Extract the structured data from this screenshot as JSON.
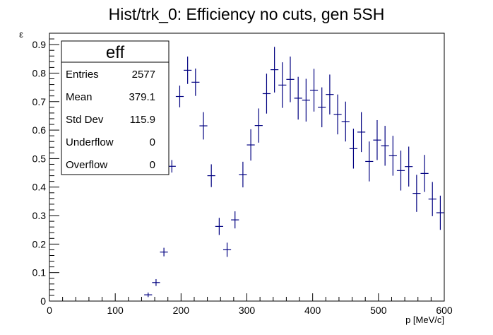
{
  "chart_data": {
    "type": "scatter",
    "title": "Hist/trk_0: Efficiency no cuts, gen 5SH",
    "xlabel": "p [MeV/c]",
    "ylabel": "ε",
    "xlim": [
      0,
      600
    ],
    "ylim": [
      0,
      0.94
    ],
    "x_ticks": [
      "0",
      "100",
      "200",
      "300",
      "400",
      "500",
      "600"
    ],
    "y_ticks": [
      "0",
      "0.1",
      "0.2",
      "0.3",
      "0.4",
      "0.5",
      "0.6",
      "0.7",
      "0.8",
      "0.9"
    ],
    "grid": false,
    "marker_color": "#000080",
    "bin_width": 12,
    "series": [
      {
        "points": [
          {
            "x": 150,
            "y": 0.022,
            "err": 0.008
          },
          {
            "x": 162,
            "y": 0.065,
            "err": 0.012
          },
          {
            "x": 174,
            "y": 0.172,
            "err": 0.015
          },
          {
            "x": 186,
            "y": 0.473,
            "err": 0.022
          },
          {
            "x": 198,
            "y": 0.718,
            "err": 0.038
          },
          {
            "x": 210,
            "y": 0.81,
            "err": 0.048
          },
          {
            "x": 222,
            "y": 0.768,
            "err": 0.048
          },
          {
            "x": 234,
            "y": 0.615,
            "err": 0.048
          },
          {
            "x": 246,
            "y": 0.44,
            "err": 0.04
          },
          {
            "x": 258,
            "y": 0.262,
            "err": 0.03
          },
          {
            "x": 270,
            "y": 0.18,
            "err": 0.025
          },
          {
            "x": 282,
            "y": 0.285,
            "err": 0.03
          },
          {
            "x": 294,
            "y": 0.444,
            "err": 0.045
          },
          {
            "x": 306,
            "y": 0.548,
            "err": 0.055
          },
          {
            "x": 318,
            "y": 0.616,
            "err": 0.06
          },
          {
            "x": 330,
            "y": 0.728,
            "err": 0.07
          },
          {
            "x": 342,
            "y": 0.812,
            "err": 0.08
          },
          {
            "x": 354,
            "y": 0.758,
            "err": 0.08
          },
          {
            "x": 366,
            "y": 0.778,
            "err": 0.08
          },
          {
            "x": 378,
            "y": 0.712,
            "err": 0.075
          },
          {
            "x": 390,
            "y": 0.705,
            "err": 0.075
          },
          {
            "x": 402,
            "y": 0.74,
            "err": 0.075
          },
          {
            "x": 414,
            "y": 0.68,
            "err": 0.07
          },
          {
            "x": 426,
            "y": 0.725,
            "err": 0.07
          },
          {
            "x": 438,
            "y": 0.655,
            "err": 0.07
          },
          {
            "x": 450,
            "y": 0.63,
            "err": 0.07
          },
          {
            "x": 462,
            "y": 0.535,
            "err": 0.07
          },
          {
            "x": 474,
            "y": 0.593,
            "err": 0.07
          },
          {
            "x": 486,
            "y": 0.49,
            "err": 0.07
          },
          {
            "x": 498,
            "y": 0.565,
            "err": 0.07
          },
          {
            "x": 510,
            "y": 0.545,
            "err": 0.07
          },
          {
            "x": 522,
            "y": 0.51,
            "err": 0.07
          },
          {
            "x": 534,
            "y": 0.458,
            "err": 0.07
          },
          {
            "x": 546,
            "y": 0.472,
            "err": 0.07
          },
          {
            "x": 558,
            "y": 0.378,
            "err": 0.065
          },
          {
            "x": 570,
            "y": 0.448,
            "err": 0.065
          },
          {
            "x": 582,
            "y": 0.358,
            "err": 0.06
          },
          {
            "x": 594,
            "y": 0.31,
            "err": 0.06
          }
        ]
      }
    ]
  },
  "stats_box": {
    "name": "eff",
    "rows": [
      {
        "label": "Entries",
        "value": "2577"
      },
      {
        "label": "Mean",
        "value": "379.1"
      },
      {
        "label": "Std Dev",
        "value": "115.9"
      },
      {
        "label": "Underflow",
        "value": "0"
      },
      {
        "label": "Overflow",
        "value": "0"
      }
    ]
  }
}
